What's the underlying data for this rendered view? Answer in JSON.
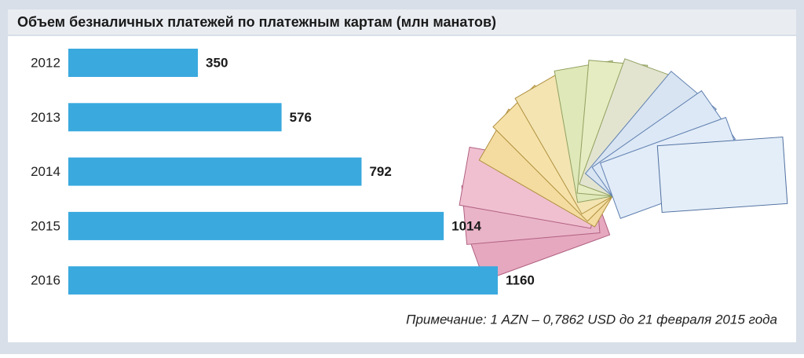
{
  "chart_data": {
    "type": "bar",
    "orientation": "horizontal",
    "title": "Объем безналичных платежей по платежным картам (млн манатов)",
    "categories": [
      "2012",
      "2013",
      "2014",
      "2015",
      "2016"
    ],
    "values": [
      350,
      576,
      792,
      1014,
      1160
    ],
    "color": "#3aa9de",
    "note": "Примечание: 1 AZN – 0,7862 USD до 21 февраля 2015 года"
  }
}
